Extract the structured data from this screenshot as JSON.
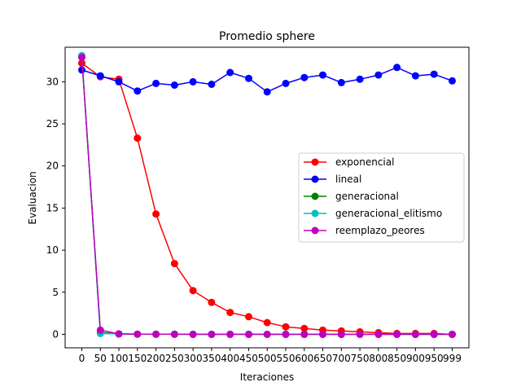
{
  "chart_data": {
    "type": "line",
    "title": "Promedio sphere",
    "xlabel": "Iteraciones",
    "ylabel": "Evaluacion",
    "x": [
      0,
      50,
      100,
      150,
      200,
      250,
      300,
      350,
      400,
      450,
      500,
      550,
      600,
      650,
      700,
      750,
      800,
      850,
      900,
      950,
      999
    ],
    "x_tick_labels": [
      "0",
      "50",
      "100",
      "150",
      "200",
      "250",
      "300",
      "350",
      "400",
      "450",
      "500",
      "550",
      "600",
      "650",
      "700",
      "750",
      "800",
      "850",
      "900",
      "950",
      "999"
    ],
    "y_ticks": [
      0,
      5,
      10,
      15,
      20,
      25,
      30
    ],
    "y_tick_labels": [
      "0",
      "5",
      "10",
      "15",
      "20",
      "25",
      "30"
    ],
    "xlim": [
      -45,
      1044
    ],
    "ylim": [
      -1.6,
      34.1
    ],
    "grid": false,
    "legend_position": "center-right",
    "series": [
      {
        "name": "exponencial",
        "color": "#ff0000",
        "values": [
          32.2,
          30.6,
          30.3,
          23.3,
          14.3,
          8.4,
          5.2,
          3.8,
          2.6,
          2.1,
          1.4,
          0.9,
          0.7,
          0.5,
          0.4,
          0.3,
          0.2,
          0.1,
          0.1,
          0.1,
          0.0
        ]
      },
      {
        "name": "lineal",
        "color": "#0000ff",
        "values": [
          31.4,
          30.7,
          30.0,
          28.9,
          29.8,
          29.6,
          30.0,
          29.7,
          31.1,
          30.4,
          28.8,
          29.8,
          30.5,
          30.8,
          29.9,
          30.3,
          30.8,
          31.7,
          30.7,
          30.9,
          30.1
        ]
      },
      {
        "name": "generacional",
        "color": "#008000",
        "values": [
          33.0,
          0.2,
          0.05,
          0.03,
          0.02,
          0.02,
          0.01,
          0.01,
          0.01,
          0.01,
          0.01,
          0.01,
          0.01,
          0.01,
          0.01,
          0.01,
          0.01,
          0.01,
          0.01,
          0.01,
          0.01
        ]
      },
      {
        "name": "generacional_elitismo",
        "color": "#00bfbf",
        "values": [
          33.1,
          0.1,
          0.05,
          0.03,
          0.02,
          0.02,
          0.01,
          0.01,
          0.01,
          0.01,
          0.01,
          0.01,
          0.01,
          0.01,
          0.01,
          0.01,
          0.01,
          0.01,
          0.01,
          0.01,
          0.01
        ]
      },
      {
        "name": "reemplazo_peores",
        "color": "#bf00bf",
        "values": [
          32.9,
          0.5,
          0.05,
          0.03,
          0.02,
          0.02,
          0.01,
          0.01,
          0.01,
          0.01,
          0.01,
          0.01,
          0.01,
          0.01,
          0.01,
          0.01,
          0.01,
          0.01,
          0.01,
          0.01,
          0.01
        ]
      }
    ]
  }
}
